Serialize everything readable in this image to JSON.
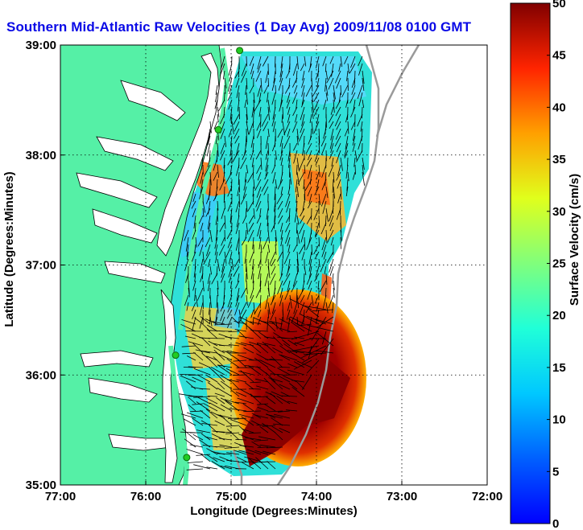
{
  "title": "Southern Mid-Atlantic Raw Velocities (1 Day Avg) 2009/11/08 0100 GMT",
  "map": {
    "x_axis_label": "Longitude (Degrees:Minutes)",
    "y_axis_label": "Latitude (Degrees:Minutes)",
    "lon_range": [
      -77,
      -72
    ],
    "lat_range": [
      35,
      39
    ],
    "x_ticks": [
      "77:00",
      "76:00",
      "75:00",
      "74:00",
      "73:00",
      "72:00"
    ],
    "y_ticks": [
      "39:00",
      "38:00",
      "37:00",
      "36:00",
      "35:00"
    ],
    "grid": "dotted",
    "land_color": "#55f0a6",
    "water_color": "#ffffff",
    "coastline_color": "#000000",
    "shelf_contour_color": "#9a9a9a",
    "station_marker_color": "#22cc22"
  },
  "colorbar": {
    "label": "Surface Velocity (cm/s)",
    "min": 0,
    "max": 50,
    "tick_labels": [
      "50",
      "45",
      "40",
      "35",
      "30",
      "25",
      "20",
      "15",
      "10",
      "5",
      "0"
    ],
    "colormap": "jet"
  }
}
